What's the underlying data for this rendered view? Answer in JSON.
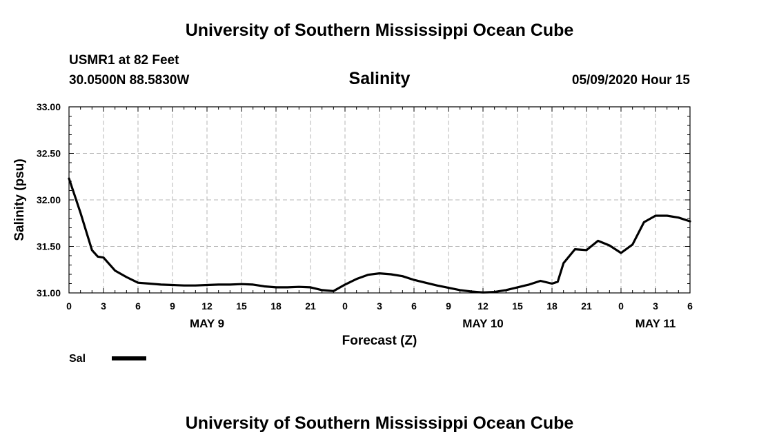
{
  "header": {
    "top_title": "University of Southern Mississippi Ocean Cube",
    "station": "USMR1 at 82 Feet",
    "coords": "30.0500N 88.5830W",
    "datetime": "05/09/2020 Hour 15"
  },
  "footer": {
    "bottom_title": "University of Southern Mississippi Ocean Cube"
  },
  "chart_data": {
    "type": "line",
    "title": "Salinity",
    "xlabel": "Forecast (Z)",
    "ylabel": "Salinity (psu)",
    "xlim": [
      0,
      54
    ],
    "ylim": [
      31.0,
      33.0
    ],
    "yticks": [
      31.0,
      31.5,
      32.0,
      32.5,
      33.0
    ],
    "ytick_labels": [
      "31.00",
      "31.50",
      "32.00",
      "32.50",
      "33.00"
    ],
    "xticks": [
      0,
      3,
      6,
      9,
      12,
      15,
      18,
      21,
      24,
      27,
      30,
      33,
      36,
      39,
      42,
      45,
      48,
      51,
      54
    ],
    "xtick_labels": [
      "0",
      "3",
      "6",
      "9",
      "12",
      "15",
      "18",
      "21",
      "0",
      "3",
      "6",
      "9",
      "12",
      "15",
      "18",
      "21",
      "0",
      "3",
      "6"
    ],
    "day_labels": [
      {
        "x": 12,
        "label": "MAY 9"
      },
      {
        "x": 36,
        "label": "MAY 10"
      },
      {
        "x": 51,
        "label": "MAY 11"
      }
    ],
    "grid": true,
    "legend": [
      {
        "name": "Sal"
      }
    ],
    "series": [
      {
        "name": "Sal",
        "x": [
          0,
          1,
          2,
          2.5,
          3,
          4,
          5,
          6,
          7,
          8,
          9,
          10,
          11,
          12,
          13,
          14,
          15,
          16,
          17,
          18,
          19,
          20,
          21,
          22,
          23,
          24,
          25,
          26,
          27,
          28,
          29,
          30,
          31,
          32,
          33,
          34,
          35,
          36,
          37,
          38,
          39,
          40,
          41,
          42,
          42.5,
          43,
          44,
          45,
          46,
          47,
          48,
          49,
          50,
          51,
          52,
          53,
          54
        ],
        "y": [
          32.23,
          31.86,
          31.46,
          31.39,
          31.38,
          31.24,
          31.17,
          31.11,
          31.1,
          31.09,
          31.085,
          31.08,
          31.08,
          31.085,
          31.09,
          31.09,
          31.095,
          31.09,
          31.07,
          31.06,
          31.06,
          31.065,
          31.06,
          31.03,
          31.02,
          31.09,
          31.15,
          31.195,
          31.21,
          31.2,
          31.18,
          31.14,
          31.11,
          31.08,
          31.055,
          31.03,
          31.015,
          31.005,
          31.01,
          31.03,
          31.06,
          31.09,
          31.13,
          31.1,
          31.12,
          31.32,
          31.47,
          31.46,
          31.56,
          31.51,
          31.43,
          31.52,
          31.76,
          31.83,
          31.83,
          31.81,
          31.77
        ]
      }
    ]
  }
}
